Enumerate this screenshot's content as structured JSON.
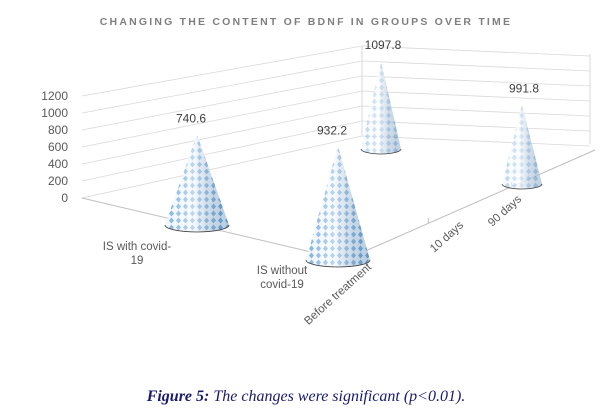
{
  "chart_data": {
    "type": "bar3d-cone",
    "title": "CHANGING THE CONTENT OF BDNF IN GROUPS OVER TIME",
    "categories": [
      "IS with covid-19",
      "IS without covid-19"
    ],
    "category_labels": [
      [
        "IS with covid-",
        "19"
      ],
      [
        "IS without",
        "covid-19"
      ]
    ],
    "series": [
      {
        "name": "Before treatment",
        "values": [
          740.6,
          932.2
        ]
      },
      {
        "name": "10 days",
        "values": [
          null,
          null
        ]
      },
      {
        "name": "90 days",
        "values": [
          1097.8,
          991.8
        ]
      }
    ],
    "yticks": [
      "0",
      "200",
      "400",
      "600",
      "800",
      "1000",
      "1200"
    ],
    "ylim": [
      0,
      1200
    ],
    "grid": true,
    "colors": {
      "cone": "#5b9bd5",
      "grid": "#d9d9d9",
      "text": "#595959"
    }
  },
  "caption": {
    "label": "Figure 5:",
    "text": "The changes were significant (p<0.01)."
  }
}
